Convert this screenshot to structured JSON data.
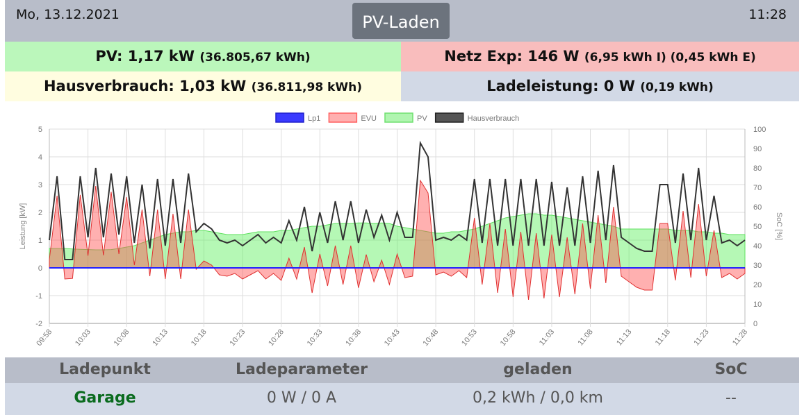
{
  "header": {
    "date": "Mo, 13.12.2021",
    "title": "PV-Laden",
    "time": "11:28"
  },
  "status": {
    "pv": {
      "main": "PV: 1,17 kW",
      "sub": "(36.805,67 kWh)",
      "color": "#bbf7bb"
    },
    "grid": {
      "main": "Netz Exp: 146 W",
      "sub": "(6,95 kWh I) (0,45 kWh E)",
      "color": "#f9bdbd"
    },
    "house": {
      "main": "Hausverbrauch: 1,03 kW",
      "sub": "(36.811,98 kWh)",
      "color": "#fffde0"
    },
    "charge": {
      "main": "Ladeleistung: 0 W",
      "sub": "(0,19 kWh)",
      "color": "#d2d9e6"
    }
  },
  "chart_data": {
    "type": "line",
    "ylabel": "Leistung [kW]",
    "y2label": "SoC [%]",
    "ylim": [
      -2,
      5
    ],
    "y2lim": [
      0,
      100
    ],
    "yticks": [
      "5",
      "4",
      "3",
      "2",
      "1",
      "0",
      "-1",
      "-2"
    ],
    "y2ticks": [
      "100",
      "90",
      "80",
      "70",
      "60",
      "50",
      "40",
      "30",
      "20",
      "10",
      "0"
    ],
    "xticks": [
      "09:58",
      "10:03",
      "10:08",
      "10:13",
      "10:18",
      "10:23",
      "10:28",
      "10:33",
      "10:38",
      "10:43",
      "10:48",
      "10:53",
      "10:58",
      "11:03",
      "11:08",
      "11:13",
      "11:18",
      "11:23",
      "11:28"
    ],
    "x_minutes": 90,
    "legend": [
      {
        "name": "Lp1",
        "color": "#3030ff"
      },
      {
        "name": "EVU",
        "color": "#ff7070"
      },
      {
        "name": "PV",
        "color": "#7ce87c"
      },
      {
        "name": "Hausverbrauch",
        "color": "#333333"
      }
    ],
    "series": {
      "Lp1": [
        0,
        0
      ],
      "PV": [
        0.7,
        0.7,
        0.7,
        0.68,
        0.67,
        0.66,
        0.65,
        0.65,
        0.66,
        0.7,
        0.75,
        0.8,
        0.9,
        1.0,
        1.1,
        1.2,
        1.25,
        1.3,
        1.3,
        1.35,
        1.35,
        1.3,
        1.25,
        1.2,
        1.2,
        1.2,
        1.25,
        1.3,
        1.3,
        1.3,
        1.35,
        1.35,
        1.4,
        1.45,
        1.5,
        1.5,
        1.55,
        1.6,
        1.6,
        1.6,
        1.62,
        1.62,
        1.6,
        1.62,
        1.6,
        1.5,
        1.45,
        1.4,
        1.35,
        1.3,
        1.25,
        1.25,
        1.3,
        1.3,
        1.35,
        1.4,
        1.5,
        1.6,
        1.7,
        1.8,
        1.85,
        1.9,
        1.95,
        1.95,
        1.9,
        1.9,
        1.85,
        1.8,
        1.75,
        1.7,
        1.65,
        1.6,
        1.55,
        1.5,
        1.4,
        1.4,
        1.4,
        1.4,
        1.4,
        1.4,
        1.4,
        1.35,
        1.35,
        1.35,
        1.3,
        1.3,
        1.25,
        1.25,
        1.2,
        1.2,
        1.2
      ],
      "EVU": [
        0.3,
        2.6,
        -0.4,
        -0.38,
        2.63,
        0.44,
        2.95,
        0.45,
        2.74,
        0.5,
        2.55,
        0.1,
        2.1,
        -0.3,
        2.1,
        -0.4,
        1.95,
        -0.4,
        2.1,
        -0.05,
        0.25,
        0.1,
        -0.25,
        -0.3,
        -0.2,
        -0.4,
        -0.25,
        -0.1,
        -0.4,
        -0.2,
        -0.45,
        0.35,
        -0.4,
        0.75,
        -0.9,
        0.5,
        -0.65,
        0.8,
        -0.6,
        0.8,
        -0.72,
        0.48,
        -0.5,
        0.28,
        -0.6,
        0.5,
        -0.35,
        -0.3,
        3.15,
        2.7,
        -0.25,
        -0.15,
        -0.3,
        -0.1,
        -0.35,
        1.8,
        -0.6,
        1.6,
        -0.9,
        1.4,
        -1.05,
        1.3,
        -1.15,
        1.25,
        -1.1,
        1.2,
        -1.05,
        1.1,
        -0.95,
        1.6,
        -0.75,
        1.9,
        -0.55,
        2.2,
        -0.3,
        -0.5,
        -0.7,
        -0.8,
        -0.8,
        1.6,
        1.6,
        -0.45,
        2.05,
        -0.35,
        2.3,
        -0.3,
        1.35,
        -0.35,
        -0.2,
        -0.4,
        -0.2
      ],
      "Hausverbrauch": [
        1.0,
        3.3,
        0.3,
        0.3,
        3.3,
        1.1,
        3.6,
        1.1,
        3.4,
        1.2,
        3.3,
        0.9,
        3.0,
        0.7,
        3.2,
        0.8,
        3.2,
        0.9,
        3.4,
        1.3,
        1.6,
        1.4,
        1.0,
        0.9,
        1.0,
        0.8,
        1.0,
        1.2,
        0.9,
        1.1,
        0.9,
        1.7,
        1.0,
        2.2,
        0.6,
        2.0,
        0.9,
        2.4,
        1.0,
        2.4,
        0.9,
        2.1,
        1.1,
        1.9,
        1.0,
        2.0,
        1.1,
        1.1,
        4.5,
        4.0,
        1.0,
        1.1,
        1.0,
        1.2,
        1.0,
        3.2,
        0.9,
        3.2,
        0.8,
        3.2,
        0.8,
        3.2,
        0.8,
        3.2,
        0.8,
        3.1,
        0.8,
        2.9,
        0.8,
        3.3,
        0.9,
        3.5,
        1.0,
        3.7,
        1.1,
        0.9,
        0.7,
        0.6,
        0.6,
        3.0,
        3.0,
        0.9,
        3.4,
        1.0,
        3.6,
        1.0,
        2.6,
        0.9,
        1.0,
        0.8,
        1.0
      ]
    }
  },
  "table": {
    "headers": [
      "Ladepunkt",
      "Ladeparameter",
      "geladen",
      "SoC"
    ],
    "rows": [
      {
        "name": "Garage",
        "params": "0 W / 0 A",
        "charged": "0,2 kWh / 0,0 km",
        "soc": "--"
      }
    ]
  }
}
